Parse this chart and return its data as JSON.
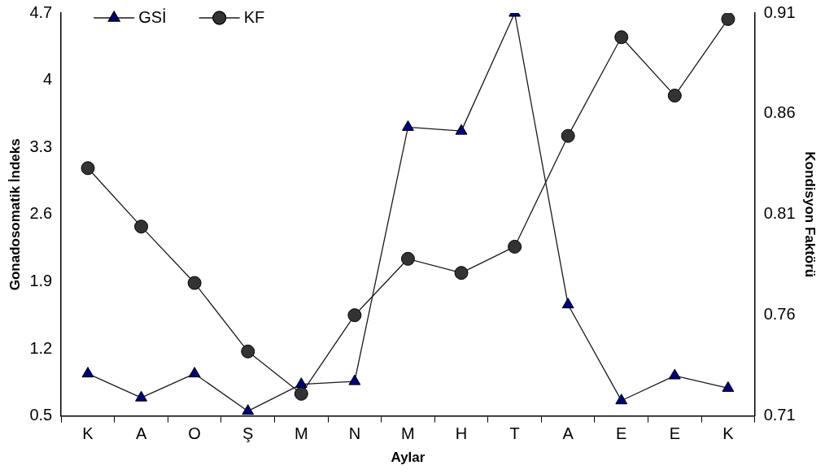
{
  "chart_data": {
    "type": "line",
    "xlabel": "Aylar",
    "ylabel": "Gonadosomatik İndeks",
    "y2label": "Kondisyon Faktörü",
    "categories": [
      "K",
      "A",
      "O",
      "Ş",
      "M",
      "N",
      "M",
      "H",
      "T",
      "A",
      "E",
      "E",
      "K"
    ],
    "series": [
      {
        "name": "GSİ",
        "color": "#000080",
        "marker": "triangle",
        "values": [
          0.94,
          0.69,
          0.94,
          0.55,
          0.83,
          0.86,
          3.51,
          3.47,
          4.7,
          1.66,
          0.66,
          0.92,
          0.79
        ]
      },
      {
        "name": "KF",
        "color": "#333333",
        "marker": "circle",
        "axis": "y2",
        "values": [
          0.833,
          0.804,
          0.776,
          0.742,
          0.721,
          0.76,
          0.788,
          0.781,
          0.794,
          0.849,
          0.898,
          0.869,
          0.907
        ]
      }
    ],
    "ylim": [
      0.5,
      4.7
    ],
    "yticks": [
      0.5,
      1.2,
      1.9,
      2.6,
      3.3,
      4,
      4.7
    ],
    "y2lim": [
      0.71,
      0.91
    ],
    "y2ticks": [
      0.71,
      0.76,
      0.81,
      0.86,
      0.91
    ],
    "grid": false,
    "legend": "top left",
    "line_style": "solid"
  }
}
